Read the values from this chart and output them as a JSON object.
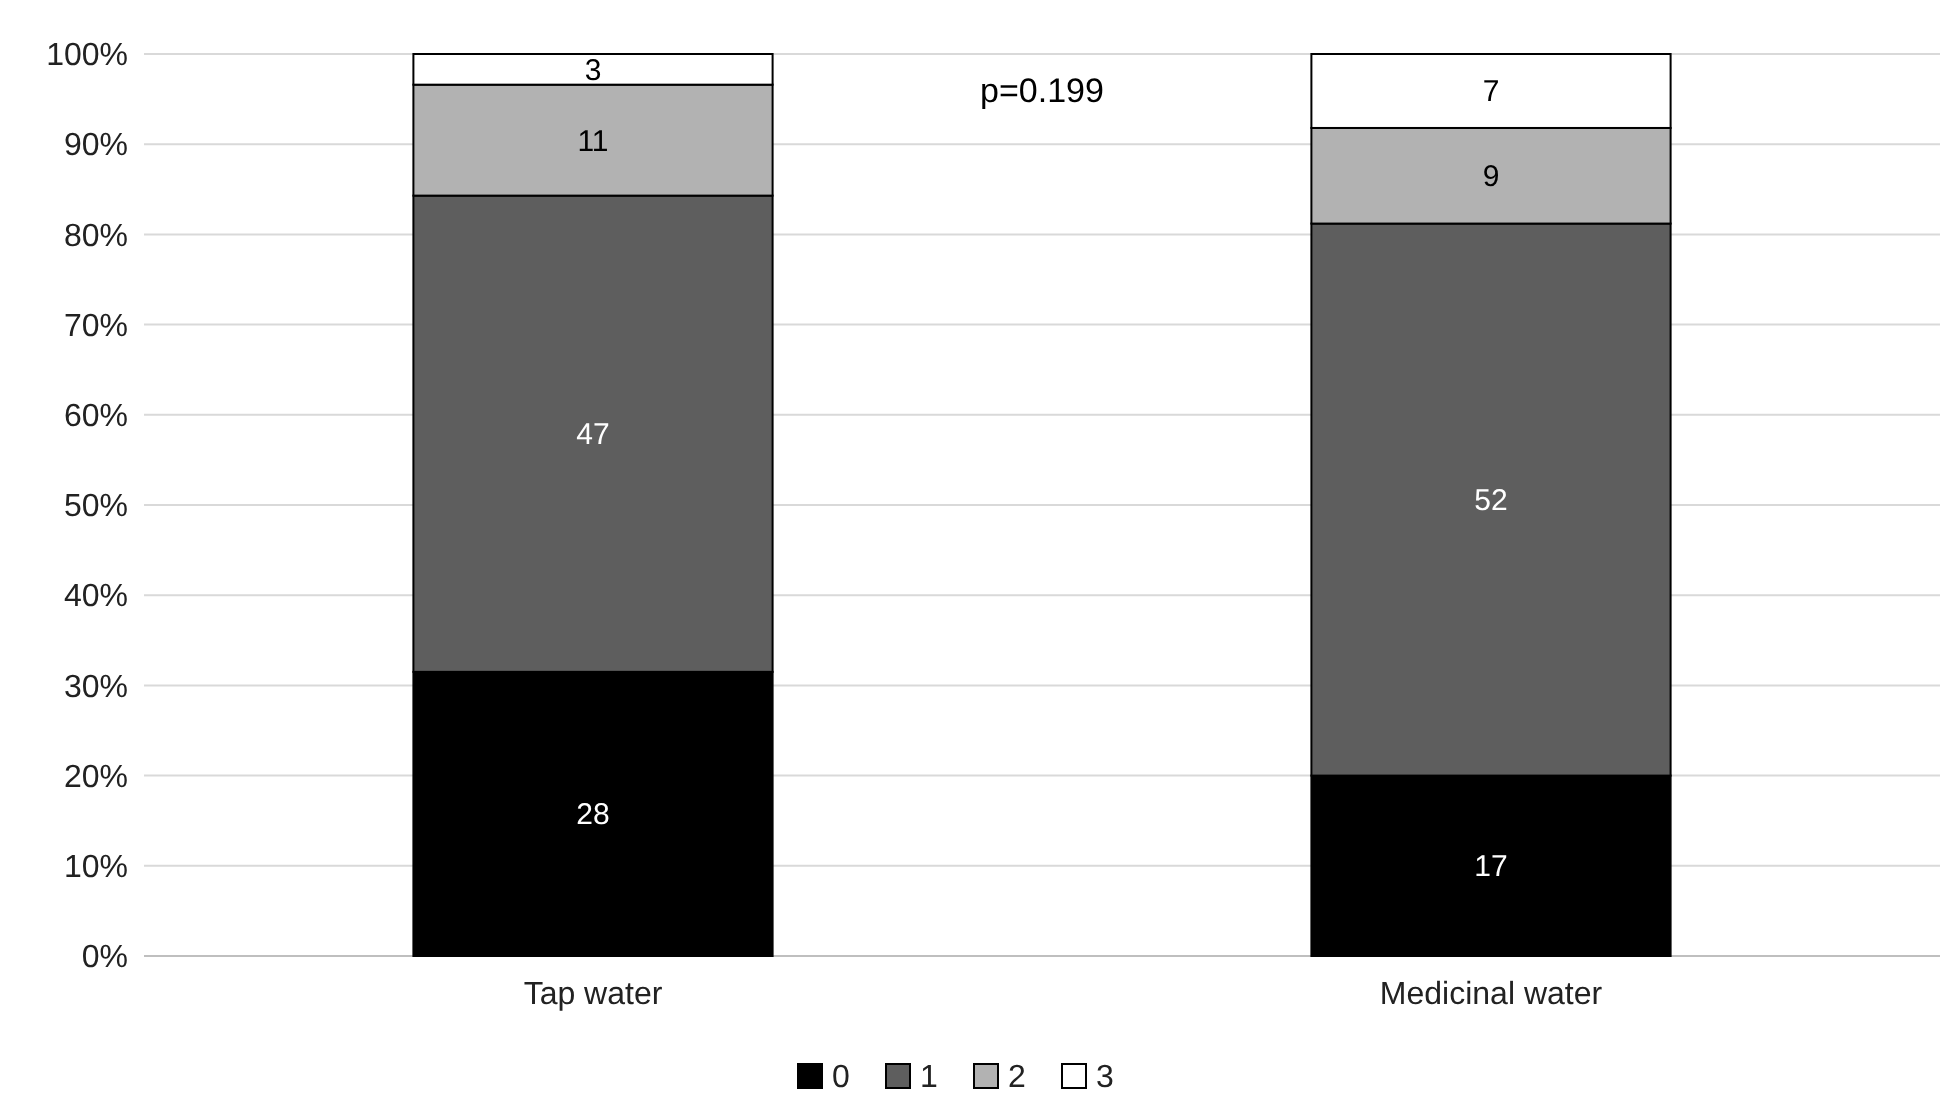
{
  "chart_data": {
    "type": "bar",
    "stacked": true,
    "categories": [
      "Tap water",
      "Medicinal water"
    ],
    "series": [
      {
        "name": "0",
        "color": "#000000",
        "values": [
          31.5,
          20.0
        ]
      },
      {
        "name": "1",
        "color": "#5e5e5e",
        "values": [
          52.8,
          61.2
        ]
      },
      {
        "name": "2",
        "color": "#b2b2b2",
        "values": [
          12.3,
          10.6
        ]
      },
      {
        "name": "3",
        "color": "#ffffff",
        "values": [
          3.4,
          8.2
        ]
      }
    ],
    "ylim": [
      0,
      100
    ],
    "yticks": [
      {
        "value": 0,
        "label": "0%"
      },
      {
        "value": 10,
        "label": "10%"
      },
      {
        "value": 20,
        "label": "20%"
      },
      {
        "value": 30,
        "label": "30%"
      },
      {
        "value": 40,
        "label": "40%"
      },
      {
        "value": 50,
        "label": "50%"
      },
      {
        "value": 60,
        "label": "60%"
      },
      {
        "value": 70,
        "label": "70%"
      },
      {
        "value": 80,
        "label": "80%"
      },
      {
        "value": 90,
        "label": "90%"
      },
      {
        "value": 100,
        "label": "100%"
      }
    ],
    "grid": "y",
    "legend": "bottom",
    "annotations": [
      "p=0.199",
      "28",
      "47",
      "11",
      "3",
      "17",
      "52",
      "9",
      "7"
    ]
  }
}
